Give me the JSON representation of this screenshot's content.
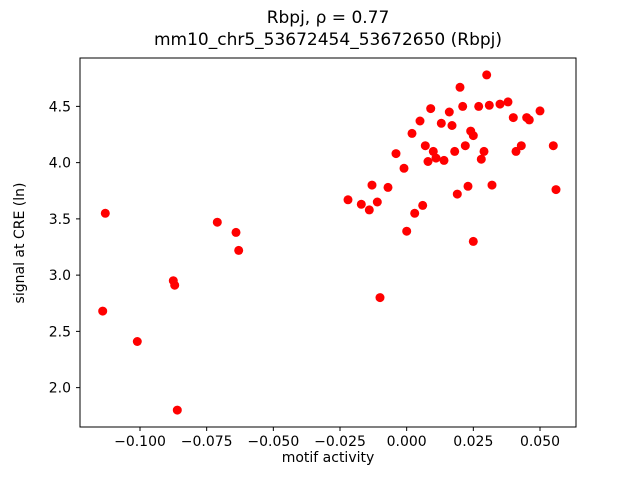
{
  "chart_data": {
    "type": "scatter",
    "title_line1": "Rbpj, ρ = 0.77",
    "title_line2": "mm10_chr5_53672454_53672650 (Rbpj)",
    "xlabel": "motif activity",
    "ylabel": "signal at CRE (ln)",
    "xlim": [
      -0.1225,
      0.0635
    ],
    "ylim": [
      1.65,
      4.93
    ],
    "x_ticks": [
      -0.1,
      -0.075,
      -0.05,
      -0.025,
      0.0,
      0.025,
      0.05
    ],
    "x_tick_labels": [
      "−0.100",
      "−0.075",
      "−0.050",
      "−0.025",
      "0.000",
      "0.025",
      "0.050"
    ],
    "y_ticks": [
      2.0,
      2.5,
      3.0,
      3.5,
      4.0,
      4.5
    ],
    "y_tick_labels": [
      "2.0",
      "2.5",
      "3.0",
      "3.5",
      "4.0",
      "4.5"
    ],
    "marker_color": "#ff0000",
    "legend": "none",
    "grid": false,
    "points": [
      [
        -0.114,
        2.68
      ],
      [
        -0.113,
        3.55
      ],
      [
        -0.101,
        2.41
      ],
      [
        -0.0875,
        2.95
      ],
      [
        -0.087,
        2.91
      ],
      [
        -0.086,
        1.8
      ],
      [
        -0.071,
        3.47
      ],
      [
        -0.064,
        3.38
      ],
      [
        -0.063,
        3.22
      ],
      [
        -0.022,
        3.67
      ],
      [
        -0.017,
        3.63
      ],
      [
        -0.014,
        3.58
      ],
      [
        -0.013,
        3.8
      ],
      [
        -0.011,
        3.65
      ],
      [
        -0.01,
        2.8
      ],
      [
        -0.007,
        3.78
      ],
      [
        -0.004,
        4.08
      ],
      [
        -0.001,
        3.95
      ],
      [
        0.0,
        3.39
      ],
      [
        0.002,
        4.26
      ],
      [
        0.003,
        3.55
      ],
      [
        0.005,
        4.37
      ],
      [
        0.006,
        3.62
      ],
      [
        0.007,
        4.15
      ],
      [
        0.008,
        4.01
      ],
      [
        0.009,
        4.48
      ],
      [
        0.01,
        4.1
      ],
      [
        0.011,
        4.04
      ],
      [
        0.013,
        4.35
      ],
      [
        0.014,
        4.02
      ],
      [
        0.016,
        4.45
      ],
      [
        0.017,
        4.33
      ],
      [
        0.018,
        4.1
      ],
      [
        0.019,
        3.72
      ],
      [
        0.02,
        4.67
      ],
      [
        0.021,
        4.5
      ],
      [
        0.022,
        4.15
      ],
      [
        0.023,
        3.79
      ],
      [
        0.024,
        4.28
      ],
      [
        0.025,
        4.24
      ],
      [
        0.025,
        3.3
      ],
      [
        0.027,
        4.5
      ],
      [
        0.028,
        4.03
      ],
      [
        0.029,
        4.1
      ],
      [
        0.03,
        4.78
      ],
      [
        0.031,
        4.51
      ],
      [
        0.032,
        3.8
      ],
      [
        0.035,
        4.52
      ],
      [
        0.038,
        4.54
      ],
      [
        0.04,
        4.4
      ],
      [
        0.041,
        4.1
      ],
      [
        0.043,
        4.15
      ],
      [
        0.045,
        4.4
      ],
      [
        0.046,
        4.38
      ],
      [
        0.05,
        4.46
      ],
      [
        0.055,
        4.15
      ],
      [
        0.056,
        3.76
      ]
    ]
  }
}
